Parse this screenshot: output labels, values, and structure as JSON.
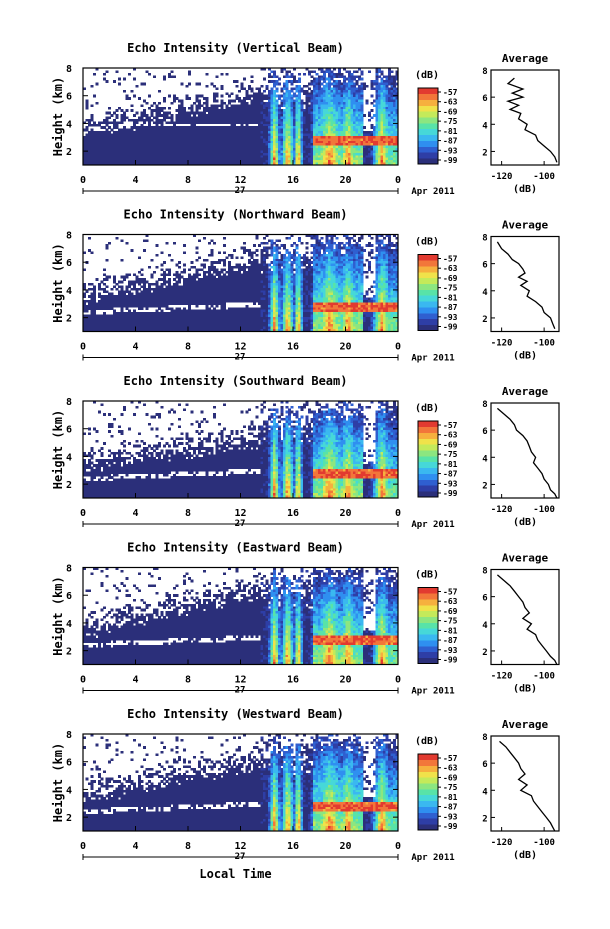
{
  "figure": {
    "xlabel": "Local Time",
    "date_label": "Apr 2011",
    "day_label": "27"
  },
  "colorbar": {
    "unit": "(dB)",
    "ticks": [
      "-57",
      "-63",
      "-69",
      "-75",
      "-81",
      "-87",
      "-93",
      "-99"
    ],
    "colors": [
      "#ffffff",
      "#2b2f7a",
      "#2e3ea6",
      "#2f5fd0",
      "#2f8ff0",
      "#3ab8f0",
      "#46d8d8",
      "#58e3a8",
      "#8ce680",
      "#c4ea5a",
      "#f0e24a",
      "#f6b03e",
      "#f2763a",
      "#e23a30"
    ]
  },
  "chart_data": [
    {
      "type": "heatmap",
      "title": "Echo Intensity (Vertical Beam)",
      "ylabel": "Height (km)",
      "x_ticks": [
        "0",
        "4",
        "8",
        "12",
        "16",
        "20",
        "0"
      ],
      "y_ticks": [
        "2",
        "4",
        "6",
        "8"
      ],
      "xlim": [
        0,
        24
      ],
      "ylim": [
        1,
        8
      ],
      "color_range_db": [
        -99,
        -57
      ],
      "profile": {
        "title": "Average",
        "x_ticks": [
          "-120",
          "-100"
        ],
        "y_ticks": [
          "2",
          "4",
          "6",
          "8"
        ],
        "xlabel": "(dB)",
        "xlim": [
          -125,
          -93
        ],
        "ylim": [
          1,
          8
        ],
        "x": [
          -114,
          -117,
          -110,
          -115,
          -110,
          -117,
          -112,
          -116,
          -111,
          -112,
          -108,
          -109,
          -104,
          -103,
          -100,
          -97,
          -95,
          -94
        ],
        "y": [
          7.4,
          7.0,
          6.6,
          6.3,
          6.0,
          5.7,
          5.4,
          5.1,
          4.8,
          4.4,
          4.0,
          3.6,
          3.2,
          2.8,
          2.4,
          2.0,
          1.6,
          1.2
        ]
      }
    },
    {
      "type": "heatmap",
      "title": "Echo Intensity (Northward Beam)",
      "ylabel": "Height (km)",
      "x_ticks": [
        "0",
        "4",
        "8",
        "12",
        "16",
        "20",
        "0"
      ],
      "y_ticks": [
        "2",
        "4",
        "6",
        "8"
      ],
      "xlim": [
        0,
        24
      ],
      "ylim": [
        1,
        8
      ],
      "color_range_db": [
        -99,
        -57
      ],
      "profile": {
        "title": "Average",
        "x_ticks": [
          "-120",
          "-100"
        ],
        "y_ticks": [
          "2",
          "4",
          "6",
          "8"
        ],
        "xlabel": "(dB)",
        "xlim": [
          -125,
          -93
        ],
        "ylim": [
          1,
          8
        ],
        "x": [
          -122,
          -120,
          -117,
          -115,
          -112,
          -110,
          -109,
          -112,
          -108,
          -111,
          -107,
          -108,
          -104,
          -101,
          -100,
          -97,
          -96,
          -95
        ],
        "y": [
          7.6,
          7.1,
          6.7,
          6.3,
          6.0,
          5.6,
          5.3,
          5.0,
          4.7,
          4.4,
          4.0,
          3.6,
          3.2,
          2.8,
          2.4,
          2.0,
          1.6,
          1.2
        ]
      }
    },
    {
      "type": "heatmap",
      "title": "Echo Intensity (Southward Beam)",
      "ylabel": "Height (km)",
      "x_ticks": [
        "0",
        "4",
        "8",
        "12",
        "16",
        "20",
        "0"
      ],
      "y_ticks": [
        "2",
        "4",
        "6",
        "8"
      ],
      "xlim": [
        0,
        24
      ],
      "ylim": [
        1,
        8
      ],
      "color_range_db": [
        -99,
        -57
      ],
      "profile": {
        "title": "Average",
        "x_ticks": [
          "-120",
          "-100"
        ],
        "y_ticks": [
          "2",
          "4",
          "6",
          "8"
        ],
        "xlabel": "(dB)",
        "xlim": [
          -125,
          -93
        ],
        "ylim": [
          1,
          8
        ],
        "x": [
          -122,
          -119,
          -116,
          -114,
          -113,
          -110,
          -108,
          -107,
          -106,
          -104,
          -105,
          -103,
          -101,
          -100,
          -98,
          -97,
          -95,
          -94
        ],
        "y": [
          7.6,
          7.2,
          6.8,
          6.4,
          6.0,
          5.6,
          5.2,
          4.8,
          4.4,
          4.0,
          3.6,
          3.2,
          2.8,
          2.4,
          2.0,
          1.6,
          1.3,
          1.0
        ]
      }
    },
    {
      "type": "heatmap",
      "title": "Echo Intensity (Eastward Beam)",
      "ylabel": "Height (km)",
      "x_ticks": [
        "0",
        "4",
        "8",
        "12",
        "16",
        "20",
        "0"
      ],
      "y_ticks": [
        "2",
        "4",
        "6",
        "8"
      ],
      "xlim": [
        0,
        24
      ],
      "ylim": [
        1,
        8
      ],
      "color_range_db": [
        -99,
        -57
      ],
      "profile": {
        "title": "Average",
        "x_ticks": [
          "-120",
          "-100"
        ],
        "y_ticks": [
          "2",
          "4",
          "6",
          "8"
        ],
        "xlabel": "(dB)",
        "xlim": [
          -125,
          -93
        ],
        "ylim": [
          1,
          8
        ],
        "x": [
          -122,
          -119,
          -116,
          -114,
          -112,
          -110,
          -109,
          -107,
          -110,
          -106,
          -108,
          -104,
          -103,
          -101,
          -99,
          -97,
          -95,
          -94
        ],
        "y": [
          7.6,
          7.2,
          6.8,
          6.4,
          6.0,
          5.6,
          5.2,
          4.8,
          4.4,
          4.0,
          3.6,
          3.2,
          2.8,
          2.4,
          2.0,
          1.6,
          1.3,
          1.0
        ]
      }
    },
    {
      "type": "heatmap",
      "title": "Echo Intensity (Westward Beam)",
      "ylabel": "Height (km)",
      "x_ticks": [
        "0",
        "4",
        "8",
        "12",
        "16",
        "20",
        "0"
      ],
      "y_ticks": [
        "2",
        "4",
        "6",
        "8"
      ],
      "xlim": [
        0,
        24
      ],
      "ylim": [
        1,
        8
      ],
      "color_range_db": [
        -99,
        -57
      ],
      "profile": {
        "title": "Average",
        "x_ticks": [
          "-120",
          "-100"
        ],
        "y_ticks": [
          "2",
          "4",
          "6",
          "8"
        ],
        "xlabel": "(dB)",
        "xlim": [
          -125,
          -93
        ],
        "ylim": [
          1,
          8
        ],
        "x": [
          -121,
          -118,
          -116,
          -114,
          -112,
          -111,
          -109,
          -112,
          -108,
          -111,
          -106,
          -105,
          -103,
          -101,
          -99,
          -97,
          -96,
          -95
        ],
        "y": [
          7.6,
          7.2,
          6.8,
          6.4,
          6.0,
          5.6,
          5.2,
          4.8,
          4.4,
          4.0,
          3.6,
          3.2,
          2.8,
          2.4,
          2.0,
          1.6,
          1.3,
          1.0
        ]
      }
    }
  ]
}
